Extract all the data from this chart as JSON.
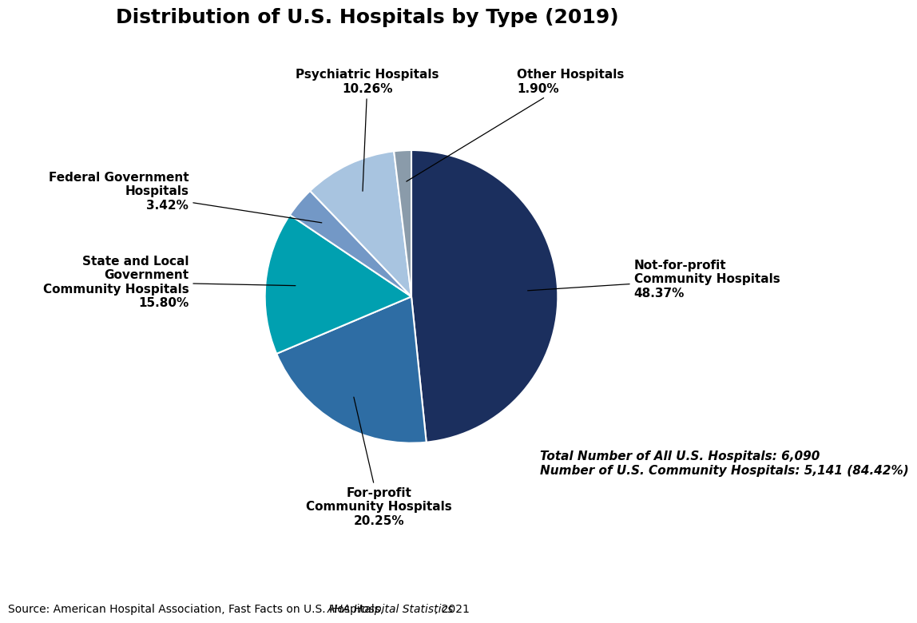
{
  "title": "Distribution of U.S. Hospitals by Type (2019)",
  "slices": [
    {
      "label": "Not-for-profit\nCommunity Hospitals\n48.37%",
      "value": 48.37,
      "color": "#1b2f5e"
    },
    {
      "label": "For-profit\nCommunity Hospitals\n20.25%",
      "value": 20.25,
      "color": "#2e6da4"
    },
    {
      "label": "State and Local\nGovernment\nCommunity Hospitals\n15.80%",
      "value": 15.8,
      "color": "#00a0b0"
    },
    {
      "label": "Federal Government\nHospitals\n3.42%",
      "value": 3.42,
      "color": "#7398c6"
    },
    {
      "label": "Psychiatric Hospitals\n10.26%",
      "value": 10.26,
      "color": "#a8c4e0"
    },
    {
      "label": "Other Hospitals\n1.90%",
      "value": 1.9,
      "color": "#8a9baa"
    }
  ],
  "annotation_line1": "Total Number of All U.S. Hospitals: 6,090",
  "annotation_line2": "Number of U.S. Community Hospitals: 5,141 (84.42%)",
  "source_normal": "Source: American Hospital Association, Fast Facts on U.S. Hospitals, ",
  "source_italic": "AHA Hospital Statistics",
  "source_end": ", 2021",
  "background_color": "#ffffff",
  "title_fontsize": 18,
  "label_fontsize": 11,
  "annotation_fontsize": 11,
  "source_fontsize": 10
}
